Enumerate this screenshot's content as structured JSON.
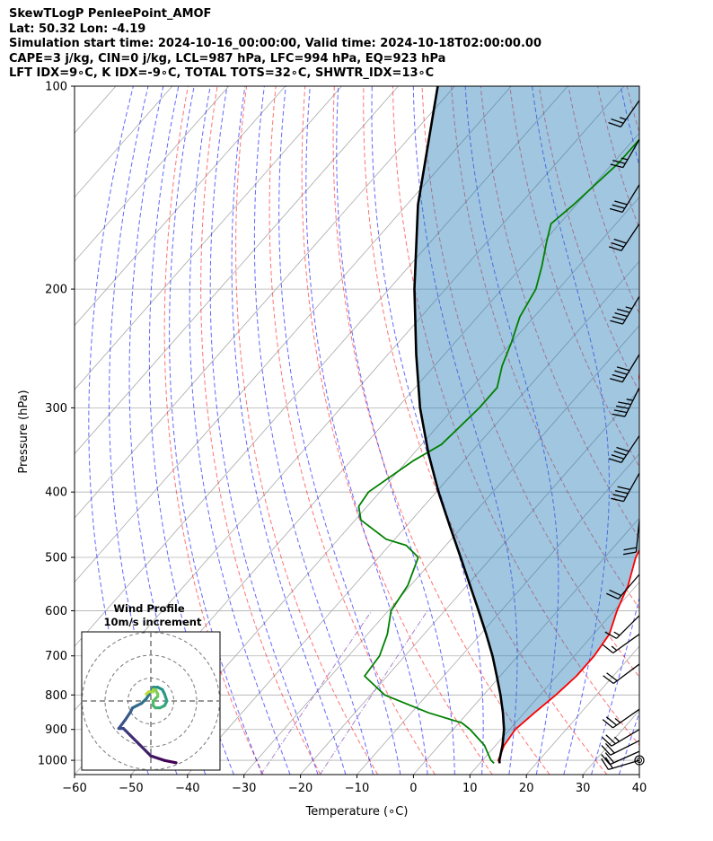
{
  "header": {
    "line1": "SkewTLogP PenleePoint_AMOF",
    "line2": "Lat: 50.32   Lon: -4.19",
    "line3": "Simulation start time: 2024-10-16_00:00:00, Valid time: 2024-10-18T02:00:00.00",
    "line4": "CAPE=3 j/kg, CIN=0 j/kg, LCL=987 hPa, LFC=994 hPa, EQ=923 hPa",
    "line5": "LFT IDX=9∘C, K IDX=-9∘C, TOTAL TOTS=32∘C, SHWTR_IDX=13∘C"
  },
  "chart_data": {
    "type": "line",
    "subtype": "skew-t log-p",
    "xlabel": "Temperature (∘C)",
    "ylabel": "Pressure (hPa)",
    "xlim": [
      -60,
      40
    ],
    "ylim": [
      1050,
      100
    ],
    "y_scale": "log",
    "grid": true,
    "x_ticks": [
      "−60",
      "−50",
      "−40",
      "−30",
      "−20",
      "−10",
      "0",
      "10",
      "20",
      "30",
      "40"
    ],
    "y_ticks": [
      "100",
      "200",
      "300",
      "400",
      "500",
      "600",
      "700",
      "800",
      "900",
      "1000"
    ],
    "colors": {
      "temperature": "#ff0000",
      "dewpoint": "#008000",
      "parcel": "#000000",
      "cape_fill": "#1f77b4",
      "dry_adiabat": "#ff0000",
      "moist_adiabat": "#0000ff",
      "mixing_ratio": "#9467bd",
      "isotherm": "#808080"
    },
    "series": [
      {
        "role": "temperature",
        "points": [
          [
            1010,
            13.5
          ],
          [
            1000,
            12.8
          ],
          [
            950,
            11.5
          ],
          [
            900,
            11.0
          ],
          [
            850,
            11.8
          ],
          [
            800,
            12.8
          ],
          [
            750,
            13.5
          ],
          [
            700,
            13.5
          ],
          [
            650,
            12.8
          ],
          [
            600,
            10.5
          ],
          [
            550,
            8.5
          ],
          [
            500,
            5.5
          ],
          [
            450,
            3.5
          ],
          [
            400,
            -3.0
          ],
          [
            350,
            -9.0
          ],
          [
            300,
            -16.5
          ],
          [
            270,
            -22.0
          ],
          [
            240,
            -26.5
          ],
          [
            220,
            -29.0
          ],
          [
            200,
            -30.0
          ],
          [
            180,
            -34.5
          ],
          [
            160,
            -38.5
          ],
          [
            140,
            -41.0
          ],
          [
            125,
            -44.0
          ],
          [
            112,
            -46.5
          ],
          [
            100,
            -50.0
          ]
        ]
      },
      {
        "role": "dewpoint",
        "points": [
          [
            1010,
            12.5
          ],
          [
            1000,
            11.5
          ],
          [
            950,
            8.0
          ],
          [
            900,
            3.0
          ],
          [
            880,
            0.5
          ],
          [
            850,
            -7.0
          ],
          [
            800,
            -17.5
          ],
          [
            750,
            -24.0
          ],
          [
            700,
            -24.5
          ],
          [
            650,
            -26.5
          ],
          [
            600,
            -29.5
          ],
          [
            550,
            -30.5
          ],
          [
            500,
            -33.0
          ],
          [
            480,
            -37.0
          ],
          [
            470,
            -41.5
          ],
          [
            440,
            -49.0
          ],
          [
            420,
            -51.5
          ],
          [
            400,
            -52.0
          ],
          [
            360,
            -49.0
          ],
          [
            340,
            -46.5
          ],
          [
            300,
            -45.5
          ],
          [
            280,
            -45.5
          ],
          [
            260,
            -48.0
          ],
          [
            240,
            -50.0
          ],
          [
            220,
            -52.5
          ],
          [
            200,
            -54.0
          ],
          [
            185,
            -56.5
          ],
          [
            170,
            -59.5
          ],
          [
            160,
            -61.5
          ],
          [
            150,
            -60.5
          ],
          [
            130,
            -59.0
          ],
          [
            115,
            -59.0
          ],
          [
            100,
            -59.0
          ]
        ]
      },
      {
        "role": "parcel",
        "points": [
          [
            1010,
            13.5
          ],
          [
            1000,
            13.0
          ],
          [
            950,
            11.2
          ],
          [
            900,
            9.0
          ],
          [
            850,
            6.2
          ],
          [
            800,
            3.0
          ],
          [
            750,
            -0.6
          ],
          [
            700,
            -4.5
          ],
          [
            650,
            -9.0
          ],
          [
            600,
            -14.0
          ],
          [
            550,
            -19.5
          ],
          [
            500,
            -25.5
          ],
          [
            450,
            -32.2
          ],
          [
            400,
            -39.6
          ],
          [
            350,
            -47.5
          ],
          [
            300,
            -56.0
          ],
          [
            250,
            -65.0
          ],
          [
            200,
            -75.5
          ],
          [
            150,
            -88.0
          ],
          [
            100,
            -103.0
          ]
        ]
      }
    ],
    "wind_barbs": [
      {
        "p": 1000,
        "u": 10,
        "v": 3,
        "calm": true
      },
      {
        "p": 970,
        "u": 9,
        "v": 4
      },
      {
        "p": 935,
        "u": 10,
        "v": 5
      },
      {
        "p": 900,
        "u": 10,
        "v": 6
      },
      {
        "p": 840,
        "u": 10,
        "v": 7
      },
      {
        "p": 720,
        "u": 8,
        "v": 6
      },
      {
        "p": 650,
        "u": 7,
        "v": 5
      },
      {
        "p": 610,
        "u": 6,
        "v": 6
      },
      {
        "p": 530,
        "u": 6,
        "v": 7
      },
      {
        "p": 440,
        "u": 1,
        "v": 10
      },
      {
        "p": 375,
        "u": 10,
        "v": 18
      },
      {
        "p": 330,
        "u": 12,
        "v": 18
      },
      {
        "p": 280,
        "u": 10,
        "v": 20
      },
      {
        "p": 250,
        "u": 11,
        "v": 18
      },
      {
        "p": 205,
        "u": 12,
        "v": 20
      },
      {
        "p": 160,
        "u": 8,
        "v": 12
      },
      {
        "p": 140,
        "u": 8,
        "v": 13
      },
      {
        "p": 120,
        "u": 7,
        "v": 12
      },
      {
        "p": 105,
        "u": 7,
        "v": 10
      }
    ],
    "hodograph": {
      "title": "Wind Profile",
      "subtitle": "10m/s increment",
      "rings_ms": [
        10,
        20,
        30
      ],
      "uv_points": [
        [
          11,
          -27
        ],
        [
          6,
          -26
        ],
        [
          3,
          -25
        ],
        [
          0,
          -24
        ],
        [
          -2,
          -22
        ],
        [
          -6,
          -18
        ],
        [
          -9,
          -15
        ],
        [
          -11,
          -13
        ],
        [
          -12,
          -12
        ],
        [
          -14,
          -12
        ],
        [
          -11,
          -8
        ],
        [
          -9,
          -5
        ],
        [
          -8,
          -3
        ],
        [
          -6,
          -2
        ],
        [
          -4,
          -1
        ],
        [
          -2,
          1
        ],
        [
          0,
          4
        ],
        [
          1,
          6
        ],
        [
          3,
          6
        ],
        [
          5,
          5
        ],
        [
          6,
          3
        ],
        [
          7,
          0
        ],
        [
          6,
          -2
        ],
        [
          4,
          -3
        ],
        [
          2,
          -3
        ],
        [
          1,
          -2
        ],
        [
          1,
          0
        ],
        [
          2,
          1
        ],
        [
          3,
          2
        ],
        [
          3,
          3
        ],
        [
          2,
          5
        ],
        [
          1,
          5
        ],
        [
          1,
          4
        ],
        [
          -1,
          4
        ],
        [
          -2,
          3
        ]
      ]
    }
  }
}
